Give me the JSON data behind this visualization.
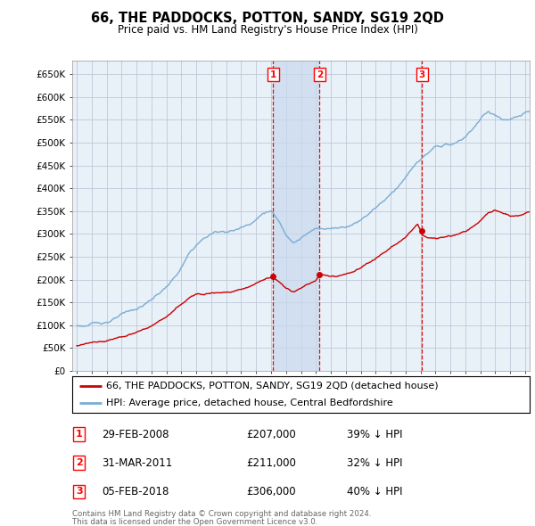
{
  "title": "66, THE PADDOCKS, POTTON, SANDY, SG19 2QD",
  "subtitle": "Price paid vs. HM Land Registry's House Price Index (HPI)",
  "legend_line1": "66, THE PADDOCKS, POTTON, SANDY, SG19 2QD (detached house)",
  "legend_line2": "HPI: Average price, detached house, Central Bedfordshire",
  "footer1": "Contains HM Land Registry data © Crown copyright and database right 2024.",
  "footer2": "This data is licensed under the Open Government Licence v3.0.",
  "transactions": [
    {
      "num": 1,
      "date": "29-FEB-2008",
      "price": "£207,000",
      "hpi": "39% ↓ HPI",
      "year": 2008.15
    },
    {
      "num": 2,
      "date": "31-MAR-2011",
      "price": "£211,000",
      "hpi": "32% ↓ HPI",
      "year": 2011.25
    },
    {
      "num": 3,
      "date": "05-FEB-2018",
      "price": "£306,000",
      "hpi": "40% ↓ HPI",
      "year": 2018.1
    }
  ],
  "transaction_prices": [
    207000,
    211000,
    306000
  ],
  "hpi_color": "#7aadd4",
  "price_color": "#cc0000",
  "background_color": "#ffffff",
  "plot_bg_color": "#e8f0f8",
  "shade_color": "#c8d8ee",
  "grid_color": "#c0c8d8",
  "vline_color": "#cc0000",
  "ylim": [
    0,
    680000
  ],
  "yticks": [
    0,
    50000,
    100000,
    150000,
    200000,
    250000,
    300000,
    350000,
    400000,
    450000,
    500000,
    550000,
    600000,
    650000
  ],
  "xlim_start": 1994.7,
  "xlim_end": 2025.3
}
